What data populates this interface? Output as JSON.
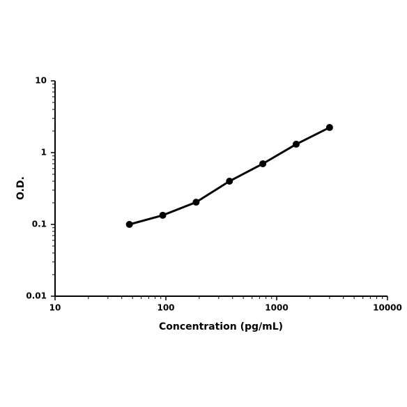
{
  "chart_data": {
    "type": "line",
    "xlabel": "Concentration (pg/mL)",
    "ylabel": "O.D.",
    "x": [
      46.875,
      93.75,
      187.5,
      375,
      750,
      1500,
      3000
    ],
    "series": [
      {
        "color": "#000000",
        "values": [
          0.1,
          0.134,
          0.204,
          0.4,
          0.7,
          1.31,
          2.24
        ]
      }
    ],
    "xscale": "log",
    "yscale": "log",
    "xlim": [
      10,
      10000
    ],
    "ylim": [
      0.01,
      10
    ],
    "xticks": [
      10,
      100,
      1000,
      10000
    ],
    "yticks": [
      0.01,
      0.1,
      1,
      10
    ],
    "minor_xticks": [
      20,
      30,
      40,
      50,
      60,
      70,
      80,
      90,
      200,
      300,
      400,
      500,
      600,
      700,
      800,
      900,
      2000,
      3000,
      4000,
      5000,
      6000,
      7000,
      8000,
      9000
    ],
    "minor_yticks": [
      0.02,
      0.03,
      0.04,
      0.05,
      0.06,
      0.07,
      0.08,
      0.09,
      0.2,
      0.3,
      0.4,
      0.5,
      0.6,
      0.7,
      0.8,
      0.9,
      2,
      3,
      4,
      5,
      6,
      7,
      8,
      9
    ],
    "grid": false
  }
}
